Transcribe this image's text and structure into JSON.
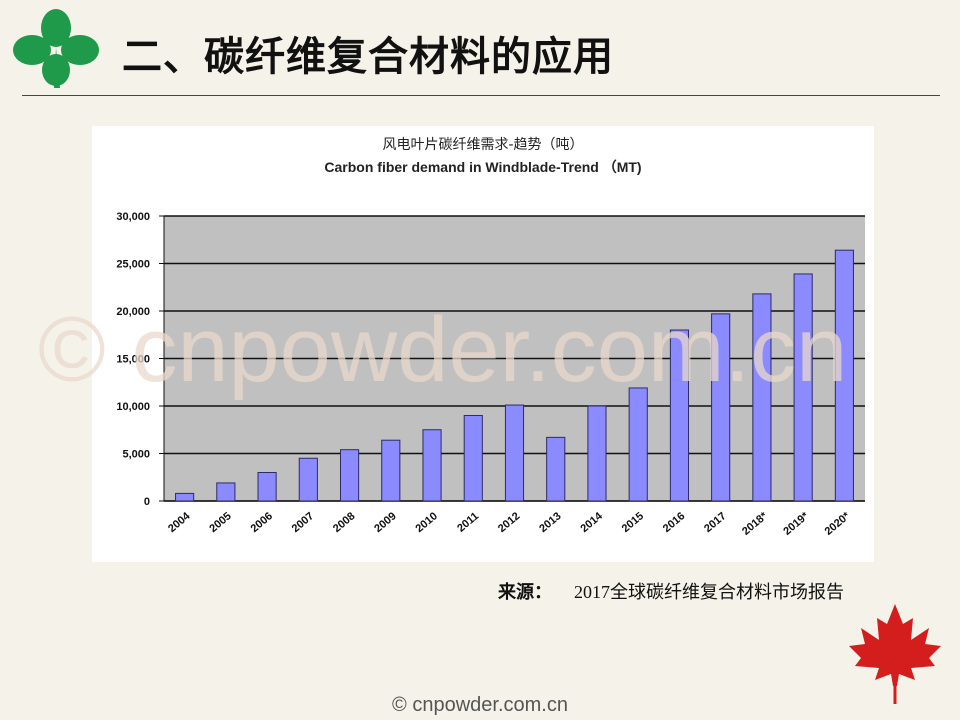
{
  "slide": {
    "title": "二、碳纤维复合材料的应用",
    "source_label": "来源：",
    "source_year": "2017",
    "source_text": "全球碳纤维复合材料市场报告",
    "watermark": "© cnpowder.com.cn",
    "footer": "© cnpowder.com.cn"
  },
  "colors": {
    "bar": "#8b8bff",
    "plot_bg": "#c0c0c0",
    "maple": "#d41e1e",
    "clover": "#1f9a4a"
  },
  "chart_data": {
    "type": "bar",
    "title": "风电叶片碳纤维需求-趋势（吨）",
    "subtitle": "Carbon fiber demand in Windblade-Trend （MT)",
    "categories": [
      "2004",
      "2005",
      "2006",
      "2007",
      "2008",
      "2009",
      "2010",
      "2011",
      "2012",
      "2013",
      "2014",
      "2015",
      "2016",
      "2017",
      "2018*",
      "2019*",
      "2020*"
    ],
    "values": [
      800,
      1900,
      3000,
      4500,
      5400,
      6400,
      7500,
      9000,
      10100,
      6700,
      10000,
      11900,
      18000,
      19700,
      21800,
      23900,
      26400
    ],
    "ylim": [
      0,
      30000
    ],
    "yticks": [
      0,
      5000,
      10000,
      15000,
      20000,
      25000,
      30000
    ],
    "ytick_labels": [
      "0",
      "5,000",
      "10,000",
      "15,000",
      "20,000",
      "25,000",
      "30,000"
    ],
    "grid": true
  }
}
